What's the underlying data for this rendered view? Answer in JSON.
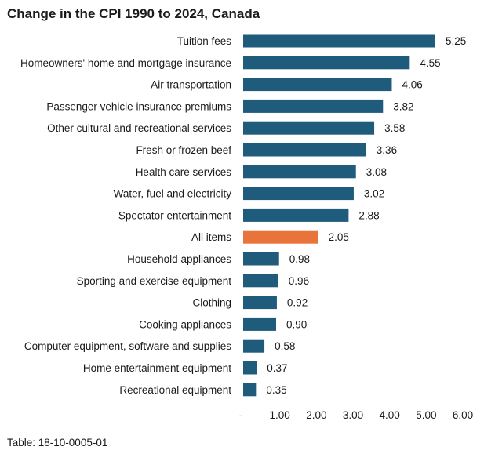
{
  "chart_data": {
    "type": "bar",
    "orientation": "horizontal",
    "title": "Change in the CPI 1990 to 2024, Canada",
    "categories": [
      "Tuition fees",
      "Homeowners' home and mortgage insurance",
      "Air transportation",
      "Passenger vehicle insurance premiums",
      "Other cultural and recreational services",
      "Fresh or frozen beef",
      "Health care services",
      "Water, fuel and electricity",
      "Spectator entertainment",
      "All items",
      "Household appliances",
      "Sporting and exercise equipment",
      "Clothing",
      "Cooking appliances",
      "Computer equipment, software and supplies",
      "Home entertainment equipment",
      "Recreational equipment"
    ],
    "values": [
      5.25,
      4.55,
      4.06,
      3.82,
      3.58,
      3.36,
      3.08,
      3.02,
      2.88,
      2.05,
      0.98,
      0.96,
      0.92,
      0.9,
      0.58,
      0.37,
      0.35
    ],
    "value_labels": [
      "5.25",
      "4.55",
      "4.06",
      "3.82",
      "3.58",
      "3.36",
      "3.08",
      "3.02",
      "2.88",
      "2.05",
      "0.98",
      "0.96",
      "0.92",
      "0.90",
      "0.58",
      "0.37",
      "0.35"
    ],
    "highlight_category": "All items",
    "xlim": [
      0,
      6
    ],
    "xticks": [
      0,
      1,
      2,
      3,
      4,
      5,
      6
    ],
    "xtick_labels": [
      "-",
      "1.00",
      "2.00",
      "3.00",
      "4.00",
      "5.00",
      "6.00"
    ],
    "grid": false,
    "legend": "none",
    "colors": {
      "bar": "#1f5b7a",
      "highlight": "#e8743b"
    },
    "source": "Table: 18-10-0005-01"
  }
}
